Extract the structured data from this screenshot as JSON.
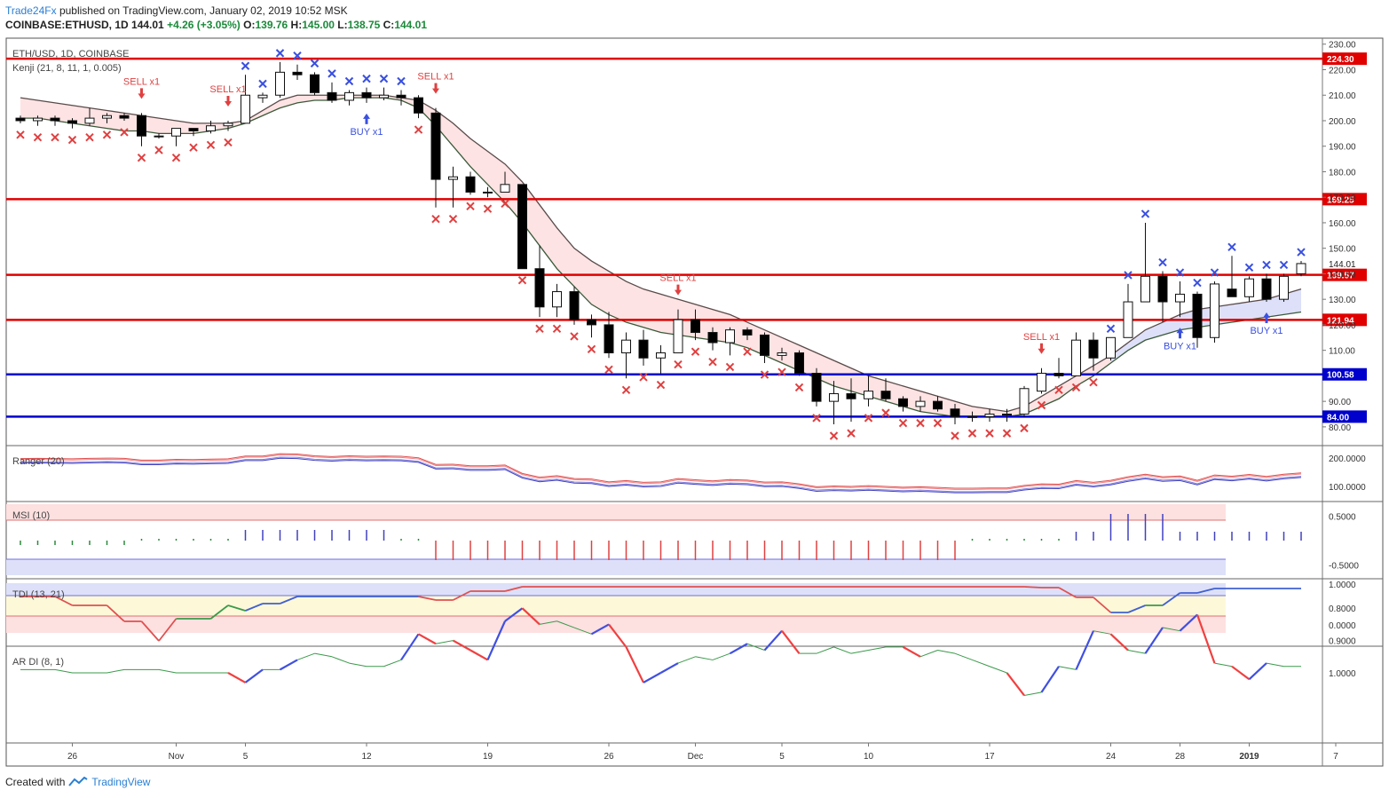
{
  "header": {
    "publisher": "Trade24Fx",
    "published_text": "published on TradingView.com, January 02, 2019 10:52 MSK",
    "symbol_line": "COINBASE:ETHUSD, 1D",
    "last": "144.01",
    "change": "+4.26 (+3.05%)",
    "open_label": "O:",
    "open": "139.76",
    "high_label": "H:",
    "high": "145.00",
    "low_label": "L:",
    "low": "138.75",
    "close_label": "C:",
    "close": "144.01"
  },
  "footer": {
    "created_with": "Created with",
    "brand": "TradingView"
  },
  "colors": {
    "up": "#ffffff",
    "down": "#000000",
    "res_line": "#e00000",
    "sup_line": "#0000cc",
    "sell": "#e04040",
    "buy": "#3a50e0",
    "cloud_red": "#fde0e0",
    "cloud_blue": "#dde0f8"
  },
  "chart_data": [
    {
      "type": "candlestick",
      "title": "ETH/USD, 1D, COINBASE",
      "indicator": "Kenji (21, 8, 11, 1, 0.005)",
      "ylim": [
        73,
        232
      ],
      "y_ticks": [
        "230.00",
        "220.00",
        "210.00",
        "200.00",
        "190.00",
        "180.00",
        "170.00",
        "160.00",
        "150.00",
        "140.00",
        "130.00",
        "120.00",
        "110.00",
        "90.00",
        "80.00"
      ],
      "y_tick_values": [
        230,
        220,
        210,
        200,
        190,
        180,
        170,
        160,
        150,
        140,
        130,
        120,
        110,
        90,
        80
      ],
      "last_price_label": "144.01",
      "last_price": 144.01,
      "x_tick_labels": [
        "26",
        "Nov",
        "5",
        "12",
        "19",
        "26",
        "Dec",
        "5",
        "10",
        "17",
        "24",
        "28",
        "2019",
        "7"
      ],
      "x_tick_index": [
        3,
        9,
        13,
        20,
        27,
        34,
        39,
        44,
        49,
        56,
        63,
        67,
        71,
        76
      ],
      "candles": [
        [
          201,
          202,
          199,
          200
        ],
        [
          200,
          202,
          198,
          201
        ],
        [
          201,
          202,
          198,
          200
        ],
        [
          200,
          201,
          197,
          199
        ],
        [
          199,
          205,
          198,
          201
        ],
        [
          201,
          203,
          199,
          202
        ],
        [
          202,
          203,
          200,
          201
        ],
        [
          202,
          203,
          190,
          194
        ],
        [
          194,
          195,
          193,
          194
        ],
        [
          194,
          197,
          190,
          197
        ],
        [
          197,
          197,
          194,
          196
        ],
        [
          196,
          200,
          195,
          198
        ],
        [
          198,
          200,
          196,
          199
        ],
        [
          199,
          218,
          199,
          210
        ],
        [
          209,
          211,
          207,
          210
        ],
        [
          210,
          223,
          209,
          219
        ],
        [
          219,
          222,
          216,
          218
        ],
        [
          218,
          219,
          210,
          211
        ],
        [
          211,
          215,
          207,
          208
        ],
        [
          208,
          212,
          206,
          211
        ],
        [
          211,
          213,
          207,
          209
        ],
        [
          209,
          213,
          208,
          210
        ],
        [
          210,
          212,
          206,
          209
        ],
        [
          209,
          210,
          201,
          203
        ],
        [
          203,
          205,
          166,
          177
        ],
        [
          177,
          182,
          166,
          178
        ],
        [
          178,
          180,
          171,
          172
        ],
        [
          172,
          174,
          170,
          172
        ],
        [
          172,
          180,
          172,
          175
        ],
        [
          175,
          175,
          142,
          142
        ],
        [
          142,
          151,
          123,
          127
        ],
        [
          127,
          136,
          123,
          133
        ],
        [
          133,
          135,
          120,
          122
        ],
        [
          122,
          124,
          115,
          120
        ],
        [
          120,
          125,
          107,
          109
        ],
        [
          109,
          117,
          99,
          114
        ],
        [
          114,
          118,
          104,
          107
        ],
        [
          107,
          112,
          101,
          109
        ],
        [
          109,
          126,
          109,
          122
        ],
        [
          122,
          126,
          114,
          117
        ],
        [
          117,
          119,
          110,
          113
        ],
        [
          113,
          119,
          108,
          118
        ],
        [
          118,
          119,
          114,
          116
        ],
        [
          116,
          117,
          105,
          108
        ],
        [
          108,
          111,
          106,
          109
        ],
        [
          109,
          110,
          100,
          101
        ],
        [
          101,
          103,
          88,
          90
        ],
        [
          90,
          98,
          81,
          93
        ],
        [
          93,
          99,
          82,
          91
        ],
        [
          91,
          100,
          88,
          94
        ],
        [
          94,
          99,
          90,
          91
        ],
        [
          91,
          92,
          86,
          88
        ],
        [
          88,
          92,
          86,
          90
        ],
        [
          90,
          92,
          86,
          87
        ],
        [
          87,
          89,
          81,
          84
        ],
        [
          84,
          86,
          82,
          84
        ],
        [
          84,
          87,
          82,
          85
        ],
        [
          85,
          87,
          82,
          85
        ],
        [
          85,
          96,
          84,
          95
        ],
        [
          94,
          103,
          93,
          101
        ],
        [
          101,
          107,
          99,
          100
        ],
        [
          100,
          117,
          100,
          114
        ],
        [
          114,
          117,
          102,
          107
        ],
        [
          107,
          115,
          106,
          115
        ],
        [
          115,
          136,
          115,
          129
        ],
        [
          129,
          160,
          129,
          139
        ],
        [
          139,
          141,
          121,
          129
        ],
        [
          129,
          137,
          123,
          132
        ],
        [
          132,
          133,
          111,
          115
        ],
        [
          115,
          137,
          113,
          136
        ],
        [
          134,
          147,
          132,
          131
        ],
        [
          131,
          139,
          129,
          138
        ],
        [
          138,
          140,
          129,
          130
        ],
        [
          130,
          140,
          129,
          139
        ],
        [
          140,
          145,
          139,
          144
        ]
      ],
      "horizontal_levels": [
        {
          "label": "224.30",
          "value": 224.3,
          "color": "#e00000"
        },
        {
          "label": "169.25",
          "value": 169.25,
          "color": "#e00000"
        },
        {
          "label": "139.57",
          "value": 139.57,
          "color": "#e00000"
        },
        {
          "label": "121.94",
          "value": 121.94,
          "color": "#e00000"
        },
        {
          "label": "100.58",
          "value": 100.58,
          "color": "#0000cc"
        },
        {
          "label": "84.00",
          "value": 84.0,
          "color": "#0000cc"
        }
      ],
      "band_upper": [
        209,
        208,
        207,
        206,
        205,
        204,
        203,
        202,
        201,
        200,
        199,
        199,
        199,
        200,
        204,
        208,
        210,
        210,
        210,
        210,
        210,
        210,
        209,
        208,
        204,
        199,
        193,
        188,
        183,
        176,
        167,
        158,
        150,
        145,
        141,
        137,
        134,
        132,
        130,
        128,
        126,
        124,
        121,
        118,
        115,
        112,
        109,
        106,
        103,
        100,
        98,
        96,
        94,
        92,
        90,
        88,
        87,
        86,
        88,
        92,
        96,
        100,
        104,
        108,
        113,
        118,
        121,
        124,
        126,
        127,
        128,
        129,
        130,
        132,
        134
      ],
      "band_lower": [
        201,
        201,
        200,
        199,
        198,
        197,
        196,
        196,
        195,
        195,
        195,
        196,
        197,
        199,
        202,
        205,
        207,
        208,
        208,
        209,
        209,
        209,
        208,
        205,
        198,
        190,
        182,
        175,
        168,
        160,
        151,
        142,
        135,
        128,
        124,
        121,
        119,
        117,
        116,
        115,
        114,
        113,
        111,
        108,
        105,
        102,
        99,
        96,
        94,
        92,
        90,
        88,
        86,
        85,
        84,
        84,
        84,
        84,
        85,
        88,
        91,
        96,
        100,
        105,
        110,
        114,
        116,
        118,
        119,
        120,
        121,
        122,
        123,
        124,
        125
      ],
      "signals": [
        {
          "label": "SELL x1",
          "index": 7,
          "type": "sell"
        },
        {
          "label": "SELL x1",
          "index": 12,
          "type": "sell"
        },
        {
          "label": "BUY x1",
          "index": 20,
          "type": "buy"
        },
        {
          "label": "SELL x1",
          "index": 24,
          "type": "sell"
        },
        {
          "label": "SELL x1",
          "index": 38,
          "type": "sell"
        },
        {
          "label": "SELL x1",
          "index": 59,
          "type": "sell"
        },
        {
          "label": "BUY x1",
          "index": 67,
          "type": "buy"
        },
        {
          "label": "BUY x1",
          "index": 72,
          "type": "buy"
        }
      ]
    },
    {
      "type": "line",
      "title": "Ranger (20)",
      "y_ticks": [
        "200.0000",
        "100.0000"
      ],
      "y_tick_values": [
        200,
        100
      ]
    },
    {
      "type": "bar",
      "title": "MSI (10)",
      "y_ticks": [
        "0.5000",
        "-0.5000"
      ],
      "y_tick_values": [
        0.5,
        -0.5
      ]
    },
    {
      "type": "line",
      "title": "TDI (13, 21)",
      "y_ticks": [
        "1.0000",
        "0.0000"
      ],
      "y_tick_values": [
        1,
        0
      ]
    },
    {
      "type": "line",
      "title": "AR DI (8, 1)",
      "y_ticks": [
        "1.0000",
        "0.9000",
        "0.8000"
      ],
      "y_tick_values": [
        1.0,
        0.9,
        0.8
      ]
    }
  ]
}
